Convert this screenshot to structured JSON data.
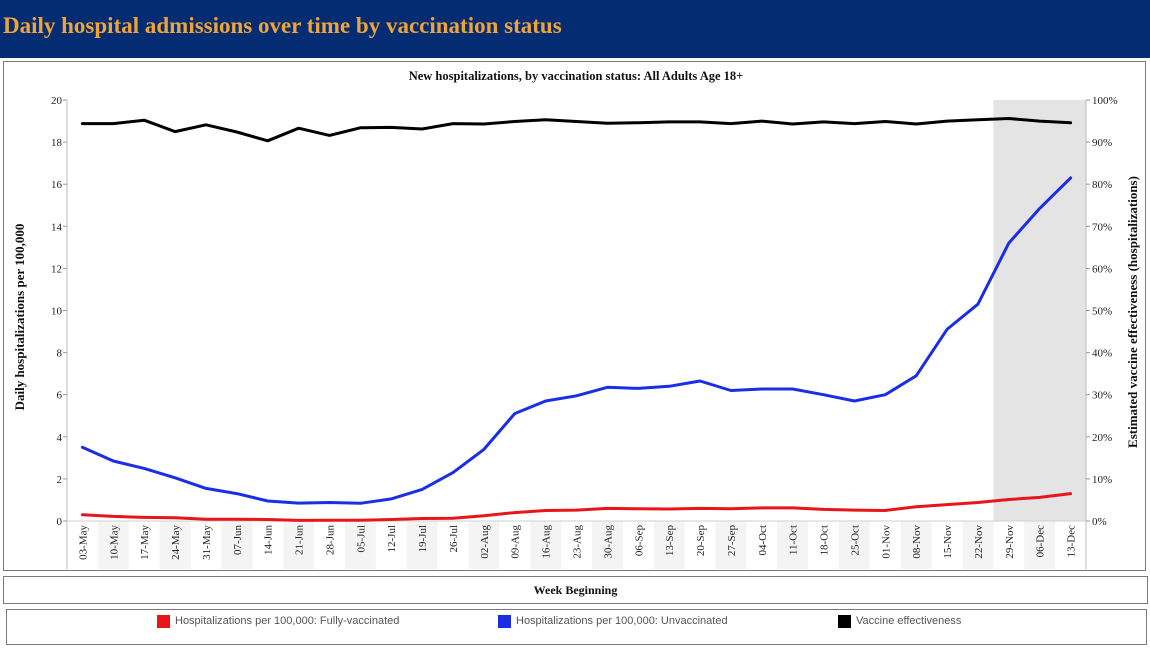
{
  "page": {
    "title": "Daily hospital admissions over time by vaccination status"
  },
  "chart_data": {
    "type": "line",
    "title": "New hospitalizations, by vaccination status: All Adults Age 18+",
    "xlabel": "Week Beginning",
    "ylabel": "Daily hospitalizations per 100,000",
    "y2label": "Estimated vaccine effectiveness (hospitalizations)",
    "ylim": [
      0,
      20
    ],
    "y2lim": [
      0,
      100
    ],
    "yticks": [
      0,
      2,
      4,
      6,
      8,
      10,
      12,
      14,
      16,
      18,
      20
    ],
    "yticks_text": [
      "0",
      "2",
      "4",
      "6",
      "8",
      "10",
      "12",
      "14",
      "16",
      "18",
      "20"
    ],
    "y2ticks": [
      0,
      10,
      20,
      30,
      40,
      50,
      60,
      70,
      80,
      90,
      100
    ],
    "y2ticks_text": [
      "0%",
      "10%",
      "20%",
      "30%",
      "40%",
      "50%",
      "60%",
      "70%",
      "80%",
      "90%",
      "100%"
    ],
    "categories": [
      "03-May",
      "10-May",
      "17-May",
      "24-May",
      "31-May",
      "07-Jun",
      "14-Jun",
      "21-Jun",
      "28-Jun",
      "05-Jul",
      "12-Jul",
      "19-Jul",
      "26-Jul",
      "02-Aug",
      "09-Aug",
      "16-Aug",
      "23-Aug",
      "30-Aug",
      "06-Sep",
      "13-Sep",
      "20-Sep",
      "27-Sep",
      "04-Oct",
      "11-Oct",
      "18-Oct",
      "25-Oct",
      "01-Nov",
      "08-Nov",
      "15-Nov",
      "22-Nov",
      "29-Nov",
      "06-Dec",
      "13-Dec"
    ],
    "shaded_region": {
      "from": "29-Nov",
      "to": "13-Dec",
      "color": "#e4e4e4"
    },
    "series": [
      {
        "name": "Hospitalizations per 100,000: Fully-vaccinated",
        "color": "#e8161b",
        "axis": "left",
        "values": [
          0.3,
          0.22,
          0.17,
          0.15,
          0.08,
          0.08,
          0.07,
          0.03,
          0.04,
          0.04,
          0.07,
          0.12,
          0.13,
          0.25,
          0.4,
          0.5,
          0.52,
          0.6,
          0.58,
          0.57,
          0.6,
          0.58,
          0.62,
          0.62,
          0.55,
          0.52,
          0.5,
          0.68,
          0.78,
          0.88,
          1.02,
          1.12,
          1.3
        ]
      },
      {
        "name": "Hospitalizations per 100,000: Unvaccinated",
        "color": "#1a2ee6",
        "axis": "left",
        "values": [
          3.5,
          2.85,
          2.5,
          2.05,
          1.55,
          1.3,
          0.95,
          0.85,
          0.88,
          0.84,
          1.05,
          1.5,
          2.3,
          3.4,
          5.1,
          5.7,
          5.95,
          6.35,
          6.3,
          6.4,
          6.65,
          6.2,
          6.27,
          6.27,
          6.0,
          5.7,
          6.0,
          6.9,
          9.1,
          10.3,
          13.2,
          14.85,
          16.3
        ]
      },
      {
        "name": "Vaccine effectiveness",
        "color": "#000000",
        "axis": "right",
        "values": [
          94.4,
          94.4,
          95.2,
          92.5,
          94.1,
          92.4,
          90.3,
          93.3,
          91.6,
          93.4,
          93.5,
          93.1,
          94.4,
          94.3,
          94.9,
          95.3,
          94.9,
          94.5,
          94.6,
          94.8,
          94.8,
          94.4,
          95.0,
          94.3,
          94.8,
          94.4,
          94.9,
          94.3,
          95.0,
          95.3,
          95.6,
          95.0,
          94.6
        ]
      }
    ],
    "legend_position": "bottom"
  }
}
